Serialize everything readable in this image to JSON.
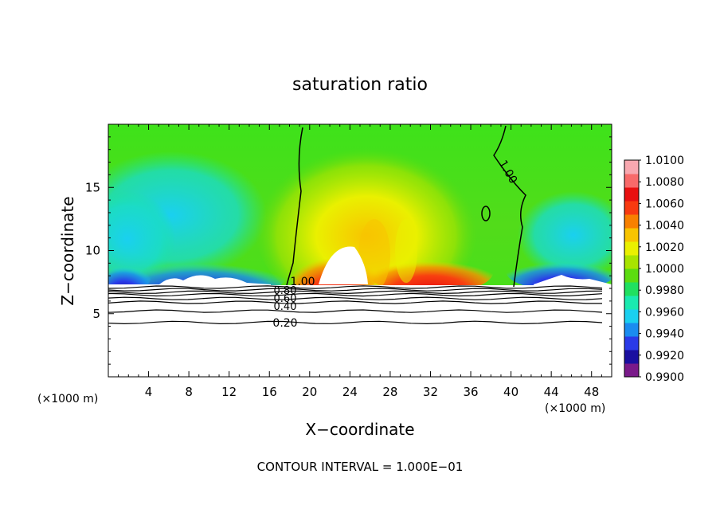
{
  "chart_data": {
    "type": "heatmap",
    "title": "saturation ratio",
    "xlabel": "X−coordinate",
    "ylabel": "Z−coordinate",
    "x_unit_left": "(×1000 m)",
    "x_unit_right": "(×1000 m)",
    "xlim": [
      0,
      50
    ],
    "ylim": [
      0,
      20
    ],
    "x_ticks": [
      4,
      8,
      12,
      16,
      20,
      24,
      28,
      32,
      36,
      40,
      44,
      48
    ],
    "y_ticks": [
      5,
      10,
      15
    ],
    "footer": "CONTOUR INTERVAL = 1.000E−01",
    "colorbar": {
      "levels": [
        "1.0100",
        "1.0080",
        "1.0060",
        "1.0040",
        "1.0020",
        "1.0000",
        "0.9980",
        "0.9960",
        "0.9940",
        "0.9920",
        "0.9900"
      ],
      "range": [
        0.99,
        1.01
      ],
      "colors": [
        "#7a1a8a",
        "#1a0fa0",
        "#2a3ae8",
        "#1a8cf0",
        "#1ad0f0",
        "#1aeab0",
        "#20e060",
        "#5cdc10",
        "#a8e400",
        "#eaf000",
        "#f8c400",
        "#f88000",
        "#f83a10",
        "#e81010",
        "#f86a6a",
        "#f8a8b0"
      ]
    },
    "contour_labels": [
      "1.00",
      "0.80",
      "0.60",
      "0.40",
      "0.20",
      "1.00"
    ],
    "contour_label_values": [
      1.0,
      0.8,
      0.6,
      0.4,
      0.2,
      1.0
    ],
    "contour_lines": [
      {
        "level": 0.2,
        "z": 4.3
      },
      {
        "level": 0.3,
        "z": 5.2
      },
      {
        "level": 0.4,
        "z": 5.9
      },
      {
        "level": 0.5,
        "z": 6.2
      },
      {
        "level": 0.6,
        "z": 6.5
      },
      {
        "level": 0.7,
        "z": 6.7
      },
      {
        "level": 0.8,
        "z": 6.9
      },
      {
        "level": 0.9,
        "z": 7.1
      }
    ]
  }
}
